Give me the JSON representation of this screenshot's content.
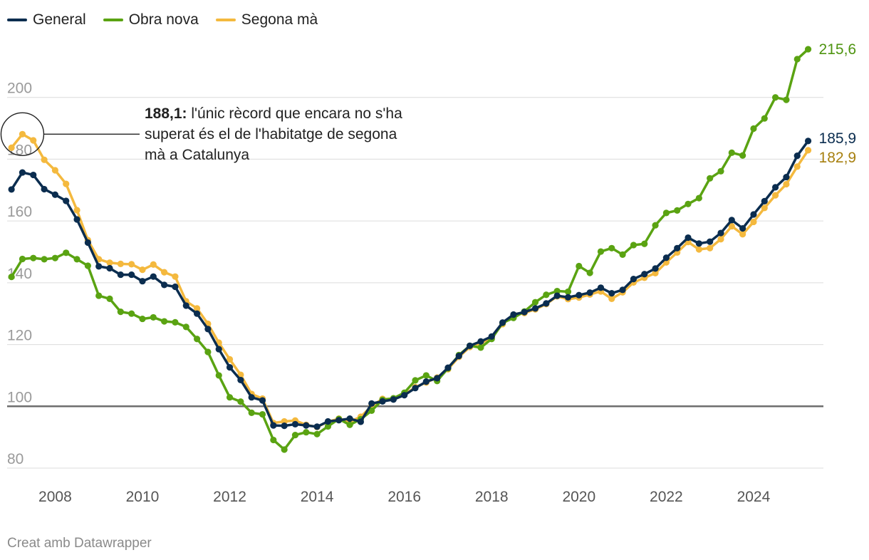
{
  "legend": [
    {
      "label": "General",
      "color": "#0b2d4f"
    },
    {
      "label": "Obra nova",
      "color": "#5aa312"
    },
    {
      "label": "Segona mà",
      "color": "#f4b93e"
    }
  ],
  "annotation": {
    "bold": "188,1:",
    "text": " l'únic rècord que encara no s'ha superat és el de l'habitatge de segona mà a Catalunya"
  },
  "footer": "Creat amb Datawrapper",
  "chart_data": {
    "type": "line",
    "title": "",
    "xlabel": "",
    "ylabel": "",
    "x_start": 2007.0,
    "x_step": 0.25,
    "xlim": [
      2006.9,
      2025.6
    ],
    "ylim": [
      77,
      220
    ],
    "xticks": [
      "2008",
      "2010",
      "2012",
      "2014",
      "2016",
      "2018",
      "2020",
      "2022",
      "2024"
    ],
    "yticks": [
      "80",
      "100",
      "120",
      "140",
      "160",
      "180",
      "200"
    ],
    "baseline": 100,
    "series": [
      {
        "name": "General",
        "color": "#0b2d4f",
        "end_label": "185,9",
        "end_label_color": "#0b2d4f",
        "values": [
          170.2,
          175.7,
          174.9,
          170.3,
          168.5,
          166.5,
          160.5,
          153.0,
          145.3,
          144.7,
          142.6,
          142.6,
          140.5,
          142.0,
          139.3,
          138.7,
          132.6,
          130.0,
          125.0,
          118.5,
          112.6,
          108.5,
          102.9,
          101.9,
          93.8,
          93.7,
          94.2,
          93.8,
          93.4,
          95.1,
          95.5,
          96.0,
          95.0,
          100.9,
          101.6,
          102.2,
          103.6,
          105.9,
          108.0,
          109.1,
          112.5,
          116.3,
          119.6,
          121.0,
          122.6,
          127.1,
          129.7,
          130.5,
          131.7,
          133.3,
          135.8,
          135.3,
          136.0,
          136.8,
          138.4,
          136.6,
          137.7,
          141.2,
          142.8,
          144.6,
          148.1,
          151.2,
          154.6,
          152.7,
          153.3,
          156.1,
          160.3,
          157.6,
          162.1,
          166.4,
          170.9,
          174.2,
          181.1,
          185.9
        ]
      },
      {
        "name": "Obra nova",
        "color": "#5aa312",
        "end_label": "215,6",
        "end_label_color": "#4e9410",
        "values": [
          141.9,
          147.7,
          148.0,
          147.6,
          148.0,
          149.7,
          147.6,
          145.5,
          135.8,
          134.8,
          130.6,
          130.0,
          128.3,
          128.8,
          127.5,
          127.2,
          125.7,
          121.8,
          117.6,
          110.0,
          102.9,
          101.5,
          97.9,
          97.4,
          89.1,
          86.0,
          90.7,
          91.6,
          91.0,
          93.5,
          95.9,
          94.0,
          95.8,
          98.6,
          102.1,
          102.6,
          104.4,
          108.4,
          110.0,
          108.2,
          112.3,
          116.6,
          119.6,
          119.0,
          121.8,
          127.0,
          128.6,
          130.7,
          133.7,
          136.1,
          137.3,
          137.1,
          145.4,
          143.2,
          150.1,
          151.2,
          149.1,
          152.2,
          152.6,
          158.6,
          162.6,
          163.4,
          165.5,
          167.4,
          173.8,
          176.1,
          182.1,
          181.2,
          189.9,
          193.2,
          200.0,
          199.2,
          212.4,
          215.6
        ]
      },
      {
        "name": "Segona mà",
        "color": "#f4b93e",
        "end_label": "182,9",
        "end_label_color": "#a78010",
        "values": [
          183.7,
          188.1,
          186.1,
          179.8,
          176.4,
          172.0,
          163.5,
          153.8,
          147.6,
          146.5,
          146.1,
          146.0,
          144.2,
          145.9,
          143.4,
          142.0,
          134.0,
          131.7,
          126.7,
          120.6,
          115.2,
          110.2,
          104.0,
          102.5,
          94.6,
          95.1,
          95.4,
          94.0,
          93.3,
          95.0,
          96.0,
          95.0,
          96.6,
          100.1,
          102.4,
          102.3,
          103.8,
          106.2,
          107.7,
          109.3,
          112.0,
          116.0,
          119.2,
          120.4,
          122.3,
          126.6,
          129.4,
          130.2,
          131.4,
          133.1,
          135.6,
          134.7,
          135.2,
          136.2,
          137.2,
          134.8,
          136.9,
          140.1,
          141.6,
          143.1,
          146.6,
          149.8,
          153.2,
          150.8,
          151.2,
          154.1,
          158.3,
          155.7,
          159.7,
          164.2,
          168.3,
          171.9,
          177.6,
          182.9
        ]
      }
    ]
  }
}
